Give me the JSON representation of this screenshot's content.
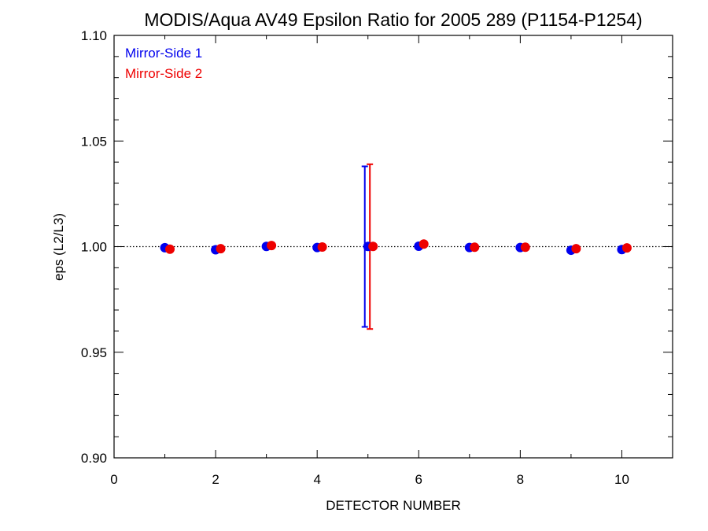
{
  "chart_data": {
    "type": "scatter",
    "title": "MODIS/Aqua AV49 Epsilon Ratio for 2005 289 (P1154-P1254)",
    "xlabel": "DETECTOR NUMBER",
    "ylabel": "eps (L2/L3)",
    "xlim": [
      0,
      11
    ],
    "ylim": [
      0.9,
      1.1
    ],
    "x_ticks": [
      0,
      2,
      4,
      6,
      8,
      10
    ],
    "x_tick_labels": [
      "0",
      "2",
      "4",
      "6",
      "8",
      "10"
    ],
    "y_ticks": [
      0.9,
      0.95,
      1.0,
      1.05,
      1.1
    ],
    "y_tick_labels": [
      "0.90",
      "0.95",
      "1.00",
      "1.05",
      "1.10"
    ],
    "reference_line": 1.0,
    "legend_position": "top-left",
    "series": [
      {
        "name": "Mirror-Side 1",
        "color": "#0000ee",
        "x": [
          1,
          2,
          3,
          4,
          5,
          6,
          7,
          8,
          9,
          10
        ],
        "y": [
          0.9995,
          0.9985,
          1.0001,
          0.9996,
          1.0001,
          1.0002,
          0.9996,
          0.9996,
          0.9983,
          0.9986
        ],
        "error_bars": [
          {
            "x": 5,
            "low": 0.962,
            "high": 1.038
          }
        ]
      },
      {
        "name": "Mirror-Side 2",
        "color": "#ee0000",
        "x": [
          1.1,
          2.1,
          3.1,
          4.1,
          5.1,
          6.1,
          7.1,
          8.1,
          9.1,
          10.1
        ],
        "y": [
          0.9988,
          0.999,
          1.0005,
          0.9998,
          1.0001,
          1.0012,
          0.9997,
          0.9997,
          0.999,
          0.9994
        ],
        "error_bars": [
          {
            "x": 5.1,
            "low": 0.961,
            "high": 1.039
          }
        ]
      }
    ]
  }
}
